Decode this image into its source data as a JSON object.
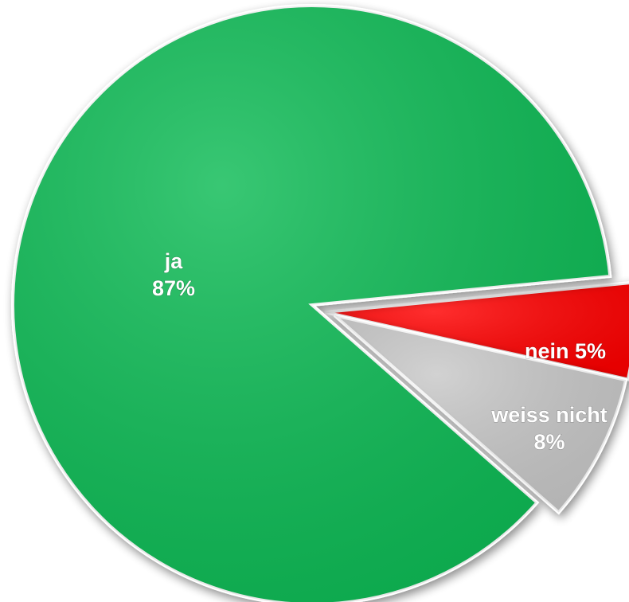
{
  "chart_data": {
    "type": "pie",
    "slices": [
      {
        "label": "ja",
        "value": 87,
        "value_text": "87%",
        "color": "#0abb55"
      },
      {
        "label": "nein",
        "value": 5,
        "value_text": "5%",
        "color": "#ff0000"
      },
      {
        "label": "weiss nicht",
        "value": 8,
        "value_text": "8%",
        "color": "#c8c8c8"
      }
    ],
    "exploded": [
      "nein",
      "weiss nicht"
    ],
    "legend": "none"
  }
}
